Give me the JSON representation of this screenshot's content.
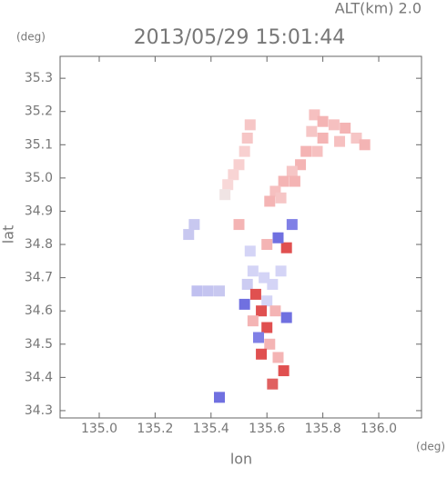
{
  "chart_data": {
    "type": "scatter",
    "altitude_label": "ALT(km) 2.0",
    "title": "2013/05/29 15:01:44",
    "y_unit": "(deg)",
    "x_unit": "(deg)",
    "y_label": "lat",
    "x_label": "lon",
    "xlim": [
      134.86,
      136.153
    ],
    "ylim": [
      34.278,
      35.366
    ],
    "xticks": [
      {
        "value": 135,
        "label": "135.0"
      },
      135.2,
      135.4,
      135.6,
      135.8,
      {
        "value": 136,
        "label": "136.0"
      }
    ],
    "yticks": [
      34.3,
      34.4,
      34.5,
      34.6,
      34.7,
      34.8,
      34.9,
      {
        "value": 35,
        "label": "35.0"
      },
      35.1,
      35.2,
      35.3
    ],
    "x": [
      135.77,
      135.8,
      135.84,
      135.88,
      135.92,
      135.95,
      135.86,
      135.8,
      135.76,
      135.74,
      135.78,
      135.72,
      135.69,
      135.66,
      135.63,
      135.61,
      135.65,
      135.7,
      135.54,
      135.53,
      135.52,
      135.5,
      135.48,
      135.46,
      135.45,
      135.34,
      135.32,
      135.35,
      135.39,
      135.43,
      135.55,
      135.59,
      135.53,
      135.62,
      135.56,
      135.6,
      135.52,
      135.58,
      135.63,
      135.55,
      135.6,
      135.57,
      135.61,
      135.58,
      135.64,
      135.66,
      135.62,
      135.67,
      135.65,
      135.67,
      135.64,
      135.69,
      135.6,
      135.54,
      135.43,
      135.5
    ],
    "values": [
      35.19,
      35.17,
      35.16,
      35.15,
      35.12,
      35.1,
      35.11,
      35.12,
      35.14,
      35.08,
      35.08,
      35.04,
      35.02,
      34.99,
      34.96,
      34.93,
      34.94,
      34.99,
      35.16,
      35.12,
      35.08,
      35.04,
      35.01,
      34.98,
      34.95,
      34.86,
      34.83,
      34.66,
      34.66,
      34.66,
      34.72,
      34.7,
      34.68,
      34.68,
      34.65,
      34.63,
      34.62,
      34.6,
      34.6,
      34.57,
      34.55,
      34.52,
      34.5,
      34.47,
      34.46,
      34.42,
      34.38,
      34.58,
      34.72,
      34.79,
      34.82,
      34.86,
      34.8,
      34.78,
      34.34,
      34.86
    ],
    "colors": [
      "#f6c0c0",
      "#f4b4b4",
      "#f6c0c0",
      "#f4b4b4",
      "#f6c6c6",
      "#f4b4b4",
      "#f6c0c0",
      "#f4b4b4",
      "#f6c6c6",
      "#f4b4b4",
      "#f6c0c0",
      "#f4b4b4",
      "#f6c6c6",
      "#f4b4b4",
      "#f6c0c0",
      "#f4b4b4",
      "#f6c6c6",
      "#f4b4b4",
      "#f6c6c6",
      "#f6c6c6",
      "#f8d0d0",
      "#f8d0d0",
      "#f8d4d4",
      "#f8d8d8",
      "#f0e4e4",
      "#c8c8f0",
      "#c8c8f0",
      "#c0c0f0",
      "#c4c4f0",
      "#c8c8f0",
      "#d4d4f6",
      "#d4d4f6",
      "#ccccf2",
      "#d4d4f6",
      "#e05050",
      "#d4d4f6",
      "#7070e0",
      "#e05050",
      "#f4b4b4",
      "#f4b4b4",
      "#e05050",
      "#8080e6",
      "#f4b4b4",
      "#e05050",
      "#f4b4b4",
      "#e05050",
      "#e06060",
      "#7070e0",
      "#d4d4f6",
      "#e05050",
      "#7070e0",
      "#8080e6",
      "#f4b4b4",
      "#d4d4f6",
      "#7070e0",
      "#f4b4b4"
    ]
  }
}
